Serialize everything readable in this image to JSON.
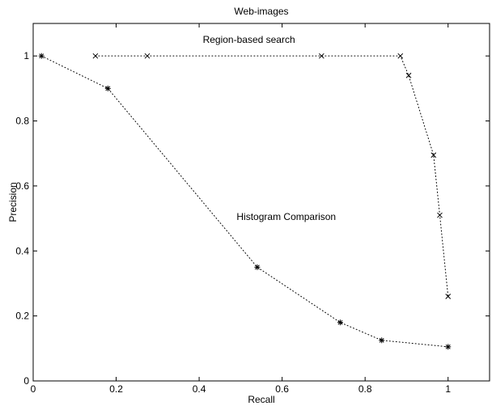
{
  "chart_data": {
    "type": "line",
    "title": "Web-images",
    "xlabel": "Recall",
    "ylabel": "Precision",
    "xlim": [
      0,
      1.1
    ],
    "ylim": [
      0,
      1.1
    ],
    "xticks": [
      0,
      0.2,
      0.4,
      0.6,
      0.8,
      1
    ],
    "xtick_labels": [
      "0",
      "0.2",
      "0.4",
      "0.6",
      "0.8",
      "1"
    ],
    "yticks": [
      0,
      0.2,
      0.4,
      0.6,
      0.8,
      1
    ],
    "ytick_labels": [
      "0",
      "0.2",
      "0.4",
      "0.6",
      "0.8",
      "1"
    ],
    "grid": false,
    "legend": "none",
    "series": [
      {
        "name": "Region-based search",
        "marker": "x",
        "line_style": "dotted",
        "color": "#000000",
        "x": [
          0.15,
          0.275,
          0.695,
          0.885,
          0.905,
          0.965,
          0.98,
          1.0
        ],
        "y": [
          1.0,
          1.0,
          1.0,
          1.0,
          0.94,
          0.695,
          0.51,
          0.26
        ]
      },
      {
        "name": "Histogram Comparison",
        "marker": "*",
        "line_style": "dotted",
        "color": "#000000",
        "x": [
          0.02,
          0.18,
          0.54,
          0.74,
          0.84,
          1.0
        ],
        "y": [
          1.0,
          0.9,
          0.35,
          0.18,
          0.125,
          0.105
        ]
      }
    ],
    "annotations": [
      {
        "text": "Region-based search",
        "x": 0.52,
        "y": 1.05
      },
      {
        "text": "Histogram Comparison",
        "x": 0.61,
        "y": 0.505
      }
    ]
  }
}
